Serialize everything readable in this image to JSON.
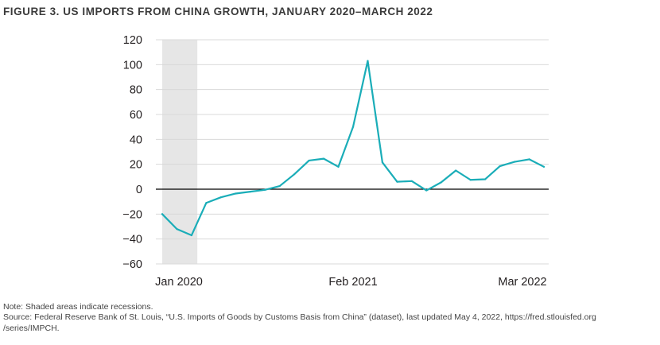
{
  "figure_title": "FIGURE 3. US IMPORTS FROM CHINA GROWTH, JANUARY 2020–MARCH 2022",
  "notes": {
    "note": "Note: Shaded areas indicate recessions.",
    "source_line1": "Source: Federal Reserve Bank of St. Louis, “U.S. Imports of Goods by Customs Basis from China” (dataset), last updated May 4, 2022, https://fred.stlouisfed.org",
    "source_line2": "/series/IMPCH."
  },
  "colors": {
    "line": "#1aadb8",
    "recession_shade": "#e6e6e6",
    "grid": "#d9d9d9",
    "zero_line": "#000000",
    "text": "#231f20"
  },
  "chart_data": {
    "type": "line",
    "title": "FIGURE 3. US IMPORTS FROM CHINA GROWTH, JANUARY 2020–MARCH 2022",
    "xlabel": "",
    "ylabel": "",
    "x": [
      "2020-01",
      "2020-02",
      "2020-03",
      "2020-04",
      "2020-05",
      "2020-06",
      "2020-07",
      "2020-08",
      "2020-09",
      "2020-10",
      "2020-11",
      "2020-12",
      "2021-01",
      "2021-02",
      "2021-03",
      "2021-04",
      "2021-05",
      "2021-06",
      "2021-07",
      "2021-08",
      "2021-09",
      "2021-10",
      "2021-11",
      "2021-12",
      "2022-01",
      "2022-02",
      "2022-03"
    ],
    "x_tick_labels": [
      {
        "x": "2020-01",
        "label": "Jan 2020"
      },
      {
        "x": "2021-02",
        "label": "Feb 2021"
      },
      {
        "x": "2022-03",
        "label": "Mar 2022"
      }
    ],
    "series": [
      {
        "values": [
          -20,
          -32,
          -37,
          -11,
          -6.5,
          -3.5,
          -2,
          -0.5,
          2.5,
          12,
          23,
          24.5,
          18,
          50,
          103,
          21.5,
          6,
          6.5,
          -1,
          5.5,
          15,
          7.5,
          8,
          18.5,
          22,
          24,
          18
        ]
      }
    ],
    "ylim": [
      -60,
      120
    ],
    "yticks": [
      -60,
      -40,
      -20,
      0,
      20,
      40,
      60,
      80,
      100,
      120
    ],
    "ytick_labels": [
      "−60",
      "−40",
      "−20",
      "0",
      "20",
      "40",
      "60",
      "80",
      "100",
      "120"
    ],
    "grid": true,
    "zero_line": true,
    "legend": "none",
    "shaded_regions": [
      {
        "label": "Recession",
        "x_start": "2020-01",
        "x_end": "2020-04"
      }
    ]
  }
}
